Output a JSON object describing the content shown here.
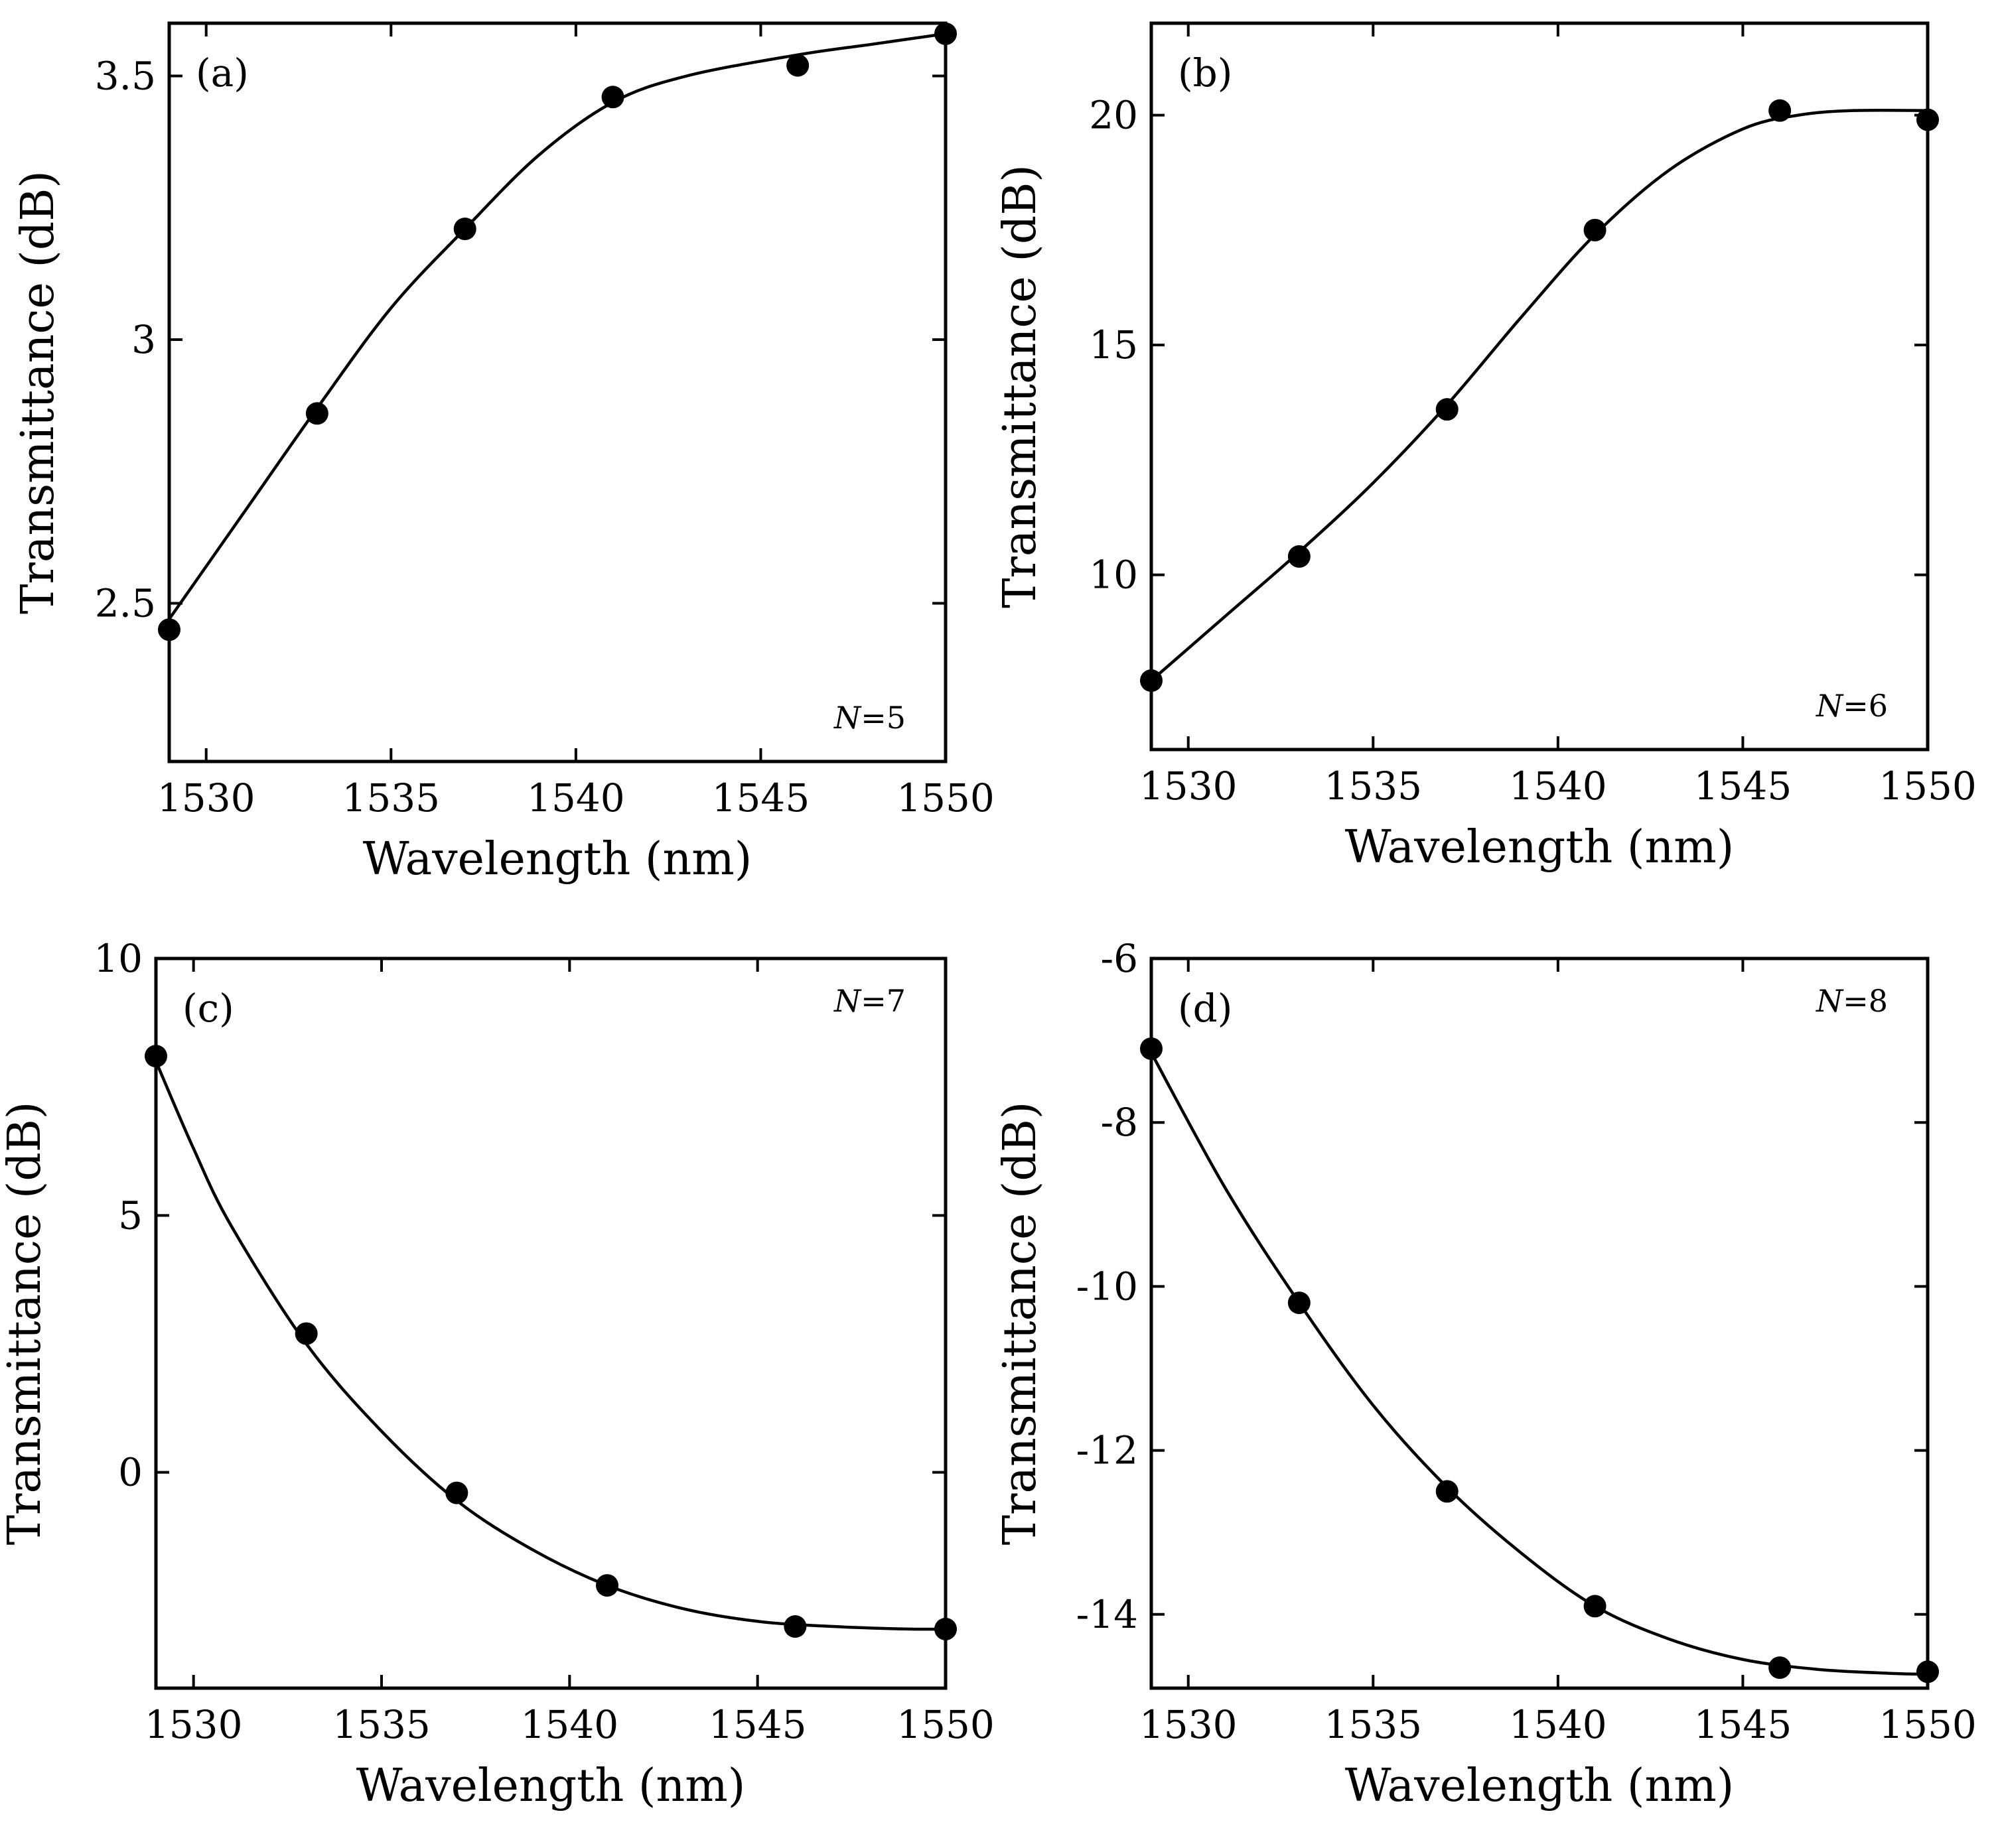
{
  "chart_data": [
    {
      "type": "scatter",
      "panel": "(a)",
      "annotation_italic": "N",
      "annotation_rest": "=5",
      "xlabel": "Wavelength (nm)",
      "ylabel": "Transmittance (dB)",
      "xlim": [
        1529,
        1550
      ],
      "ylim": [
        2.2,
        3.6
      ],
      "xticks": [
        1530,
        1535,
        1540,
        1545,
        1550
      ],
      "xtick_labels": [
        "1530",
        "1535",
        "1540",
        "1545",
        "1550"
      ],
      "yticks": [
        2.5,
        3,
        3.5
      ],
      "ytick_labels": [
        "2.5",
        "3",
        "3.5"
      ],
      "x": [
        1529,
        1533,
        1537,
        1541,
        1546,
        1550
      ],
      "y": [
        2.45,
        2.86,
        3.21,
        3.46,
        3.52,
        3.58
      ],
      "fit": {
        "x": [
          1529,
          1531,
          1533,
          1535,
          1537,
          1539,
          1541,
          1543,
          1546,
          1548,
          1550
        ],
        "y": [
          2.47,
          2.67,
          2.87,
          3.06,
          3.21,
          3.35,
          3.45,
          3.5,
          3.54,
          3.56,
          3.58
        ]
      }
    },
    {
      "type": "scatter",
      "panel": "(b)",
      "annotation_italic": "N",
      "annotation_rest": "=6",
      "xlabel": "Wavelength (nm)",
      "ylabel": "Transmittance (dB)",
      "xlim": [
        1529,
        1550
      ],
      "ylim": [
        6.2,
        22
      ],
      "xticks": [
        1530,
        1535,
        1540,
        1545,
        1550
      ],
      "xtick_labels": [
        "1530",
        "1535",
        "1540",
        "1545",
        "1550"
      ],
      "yticks": [
        10,
        15,
        20
      ],
      "ytick_labels": [
        "10",
        "15",
        "20"
      ],
      "x": [
        1529,
        1533,
        1537,
        1541,
        1546,
        1550
      ],
      "y": [
        7.7,
        10.4,
        13.6,
        17.5,
        20.1,
        19.9
      ],
      "fit": {
        "x": [
          1529,
          1531,
          1533,
          1535,
          1537,
          1539,
          1541,
          1543,
          1545,
          1546.5,
          1548,
          1550
        ],
        "y": [
          7.7,
          9.1,
          10.5,
          12.0,
          13.7,
          15.6,
          17.4,
          18.8,
          19.7,
          20.0,
          20.1,
          20.1
        ]
      }
    },
    {
      "type": "scatter",
      "panel": "(c)",
      "annotation_italic": "N",
      "annotation_rest": "=7",
      "xlabel": "Wavelength (nm)",
      "ylabel": "Transmittance (dB)",
      "xlim": [
        1529,
        1550
      ],
      "ylim": [
        -4.2,
        10
      ],
      "xticks": [
        1530,
        1535,
        1540,
        1545,
        1550
      ],
      "xtick_labels": [
        "1530",
        "1535",
        "1540",
        "1545",
        "1550"
      ],
      "yticks": [
        0,
        5,
        10
      ],
      "ytick_labels": [
        "0",
        "5",
        "10"
      ],
      "x": [
        1529,
        1533,
        1537,
        1541,
        1546,
        1550
      ],
      "y": [
        8.1,
        2.7,
        -0.4,
        -2.2,
        -3.0,
        -3.05
      ],
      "fit": {
        "x": [
          1529,
          1530,
          1531,
          1533,
          1535,
          1537,
          1539,
          1541,
          1543,
          1545,
          1547,
          1549,
          1550
        ],
        "y": [
          8.0,
          6.3,
          4.8,
          2.5,
          0.8,
          -0.55,
          -1.5,
          -2.2,
          -2.65,
          -2.9,
          -3.0,
          -3.05,
          -3.05
        ]
      }
    },
    {
      "type": "scatter",
      "panel": "(d)",
      "annotation_italic": "N",
      "annotation_rest": "=8",
      "xlabel": "Wavelength (nm)",
      "ylabel": "Transmittance (dB)",
      "xlim": [
        1529,
        1550
      ],
      "ylim": [
        -14.9,
        -6
      ],
      "xticks": [
        1530,
        1535,
        1540,
        1545,
        1550
      ],
      "xtick_labels": [
        "1530",
        "1535",
        "1540",
        "1545",
        "1550"
      ],
      "yticks": [
        -14,
        -12,
        -10,
        -8,
        -6
      ],
      "ytick_labels": [
        "-14",
        "-12",
        "-10",
        "-8",
        "-6"
      ],
      "x": [
        1529,
        1533,
        1537,
        1541,
        1546,
        1550
      ],
      "y": [
        -7.1,
        -10.2,
        -12.5,
        -13.9,
        -14.65,
        -14.7
      ],
      "fit": {
        "x": [
          1529,
          1531,
          1533,
          1535,
          1537,
          1539,
          1541,
          1543,
          1545,
          1547,
          1549,
          1550
        ],
        "y": [
          -7.15,
          -8.8,
          -10.2,
          -11.45,
          -12.45,
          -13.25,
          -13.9,
          -14.3,
          -14.55,
          -14.67,
          -14.72,
          -14.73
        ]
      }
    }
  ]
}
